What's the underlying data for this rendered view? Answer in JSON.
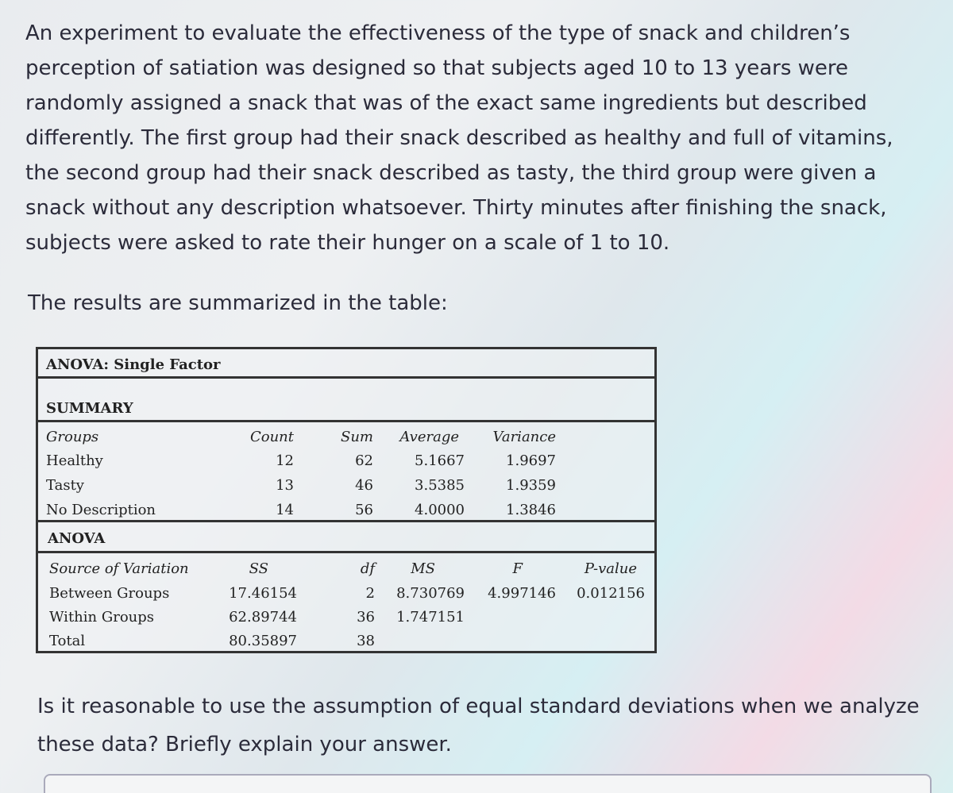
{
  "intro": "An experiment to evaluate the effectiveness of the type of snack and children’s perception of satiation was designed so that subjects aged 10 to 13 years were randomly assigned a snack that was of the exact same ingredients but described differently. The first group had their snack described as healthy and full of vitamins, the second group had their snack described as tasty, the third group were given a snack without any description whatsoever. Thirty minutes after finishing the snack, subjects were asked to rate their hunger on a scale of 1 to 10.",
  "results_note": "The results are summarized in the table:",
  "table": {
    "title": "ANOVA: Single Factor",
    "summary_label": "SUMMARY",
    "summary_headers": [
      "Groups",
      "Count",
      "Sum",
      "Average",
      "Variance"
    ],
    "summary_rows": [
      [
        "Healthy",
        "12",
        "62",
        "5.1667",
        "1.9697"
      ],
      [
        "Tasty",
        "13",
        "46",
        "3.5385",
        "1.9359"
      ],
      [
        "No Description",
        "14",
        "56",
        "4.0000",
        "1.3846"
      ]
    ],
    "anova_label": "ANOVA",
    "anova_headers": [
      "Source of Variation",
      "SS",
      "df",
      "MS",
      "F",
      "P-value"
    ],
    "anova_rows": [
      [
        "Between Groups",
        "17.46154",
        "2",
        "8.730769",
        "4.997146",
        "0.012156"
      ],
      [
        "Within Groups",
        "62.89744",
        "36",
        "1.747151"
      ],
      [
        "Total",
        "80.35897",
        "38"
      ]
    ]
  },
  "question": "Is it reasonable to use the assumption of equal standard deviations when we analyze these data? Briefly explain your answer."
}
